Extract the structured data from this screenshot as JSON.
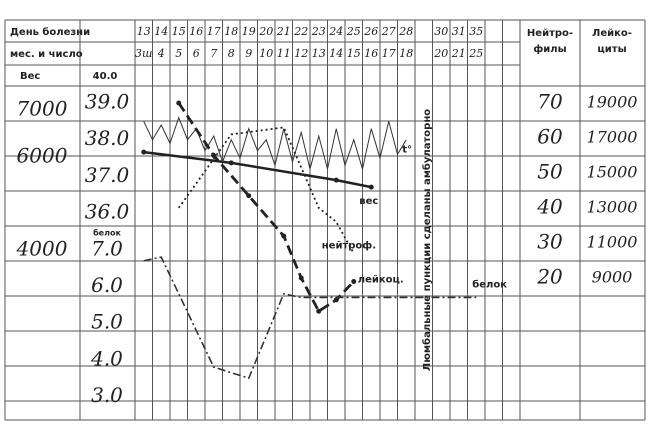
{
  "chart_data": {
    "type": "line",
    "row_labels": [
      "День болезни",
      "мес. и число"
    ],
    "days": [
      13,
      14,
      15,
      16,
      17,
      18,
      19,
      20,
      21,
      22,
      23,
      24,
      25,
      26,
      27,
      28,
      null,
      30,
      31,
      35,
      null,
      null
    ],
    "dates": [
      "3ш",
      4,
      5,
      6,
      7,
      8,
      9,
      10,
      11,
      12,
      13,
      14,
      15,
      16,
      17,
      18,
      null,
      20,
      21,
      25,
      null,
      null
    ],
    "annotation": "Люмбальные пункции сделаны амбулаторно",
    "y_weight": {
      "label": "Вес",
      "ylim": [
        360,
        7860
      ],
      "yticks": [
        7000,
        6000,
        4000
      ]
    },
    "y_temp": {
      "label": "40.0",
      "ylim": [
        30.36,
        39.9
      ],
      "yticks": [
        {
          "value": 39,
          "label": "39.0"
        },
        {
          "value": 38,
          "label": "38.0"
        },
        {
          "value": 37,
          "label": "37.0"
        },
        {
          "value": 36,
          "label": "36.0"
        }
      ]
    },
    "y_protein": {
      "label": "белок",
      "ylim": [
        2.36,
        11.9
      ],
      "yticks": [
        {
          "value": 7,
          "label": "7.0"
        },
        {
          "value": 6,
          "label": "6.0"
        },
        {
          "value": 5,
          "label": "5.0"
        },
        {
          "value": 4,
          "label": "4.0"
        },
        {
          "value": 3,
          "label": "3.0"
        }
      ]
    },
    "y_neutro": {
      "label": [
        "Нейтро-",
        "филы"
      ],
      "ylim": [
        -20.6,
        79.4
      ],
      "yticks": [
        70,
        60,
        50,
        40,
        30,
        20
      ]
    },
    "y_leuko": {
      "label": [
        "Лейко-",
        "циты"
      ],
      "ylim": [
        886,
        20886
      ],
      "yticks": [
        19000,
        17000,
        15000,
        13000,
        11000,
        9000
      ]
    },
    "series": [
      {
        "name": "вес",
        "axis": "y_weight",
        "color": "#222",
        "dash": "solid",
        "markers": true,
        "x": [
          13,
          18,
          24,
          26
        ],
        "values": [
          6100,
          5870,
          5500,
          5350
        ]
      },
      {
        "name": "t°",
        "axis": "y_temp",
        "color": "#333",
        "dash": "solid",
        "markers": false,
        "x": [
          13,
          13.5,
          14,
          14.5,
          15,
          15.5,
          16,
          16.5,
          17,
          17.5,
          18,
          18.5,
          19,
          19.5,
          20,
          20.5,
          21,
          21.5,
          22,
          22.5,
          23,
          23.5,
          24,
          24.5,
          25,
          25.5,
          26,
          26.5,
          27,
          27.5,
          28
        ],
        "values": [
          38.5,
          38.0,
          38.4,
          37.9,
          38.6,
          38.0,
          38.3,
          37.7,
          38.1,
          37.4,
          38.0,
          37.5,
          38.3,
          37.7,
          38.0,
          37.3,
          38.3,
          37.4,
          38.2,
          37.2,
          38.1,
          37.2,
          38.3,
          37.3,
          38.0,
          37.2,
          38.3,
          37.5,
          38.5,
          37.6,
          38.0
        ]
      },
      {
        "name": "нейтроф.",
        "axis": "y_neutro",
        "color": "#222",
        "dash": "dotted",
        "markers": false,
        "x": [
          15,
          18,
          21,
          23,
          24,
          25
        ],
        "values": [
          40,
          61,
          63,
          40,
          36,
          27
        ]
      },
      {
        "name": "лейкоц.",
        "axis": "y_leuko",
        "color": "#222",
        "dash": "dashed",
        "markers": true,
        "x": [
          15,
          17,
          19,
          21,
          22,
          23,
          24,
          25
        ],
        "values": [
          19000,
          16000,
          13700,
          11400,
          9000,
          7100,
          7750,
          8800
        ]
      },
      {
        "name": "белок",
        "axis": "y_protein",
        "color": "#333",
        "dash": "dashdot",
        "markers": false,
        "x": [
          13,
          14,
          17,
          19,
          21,
          22,
          35
        ],
        "values": [
          6.7,
          6.8,
          3.8,
          3.5,
          5.8,
          5.7,
          5.7
        ]
      }
    ]
  }
}
